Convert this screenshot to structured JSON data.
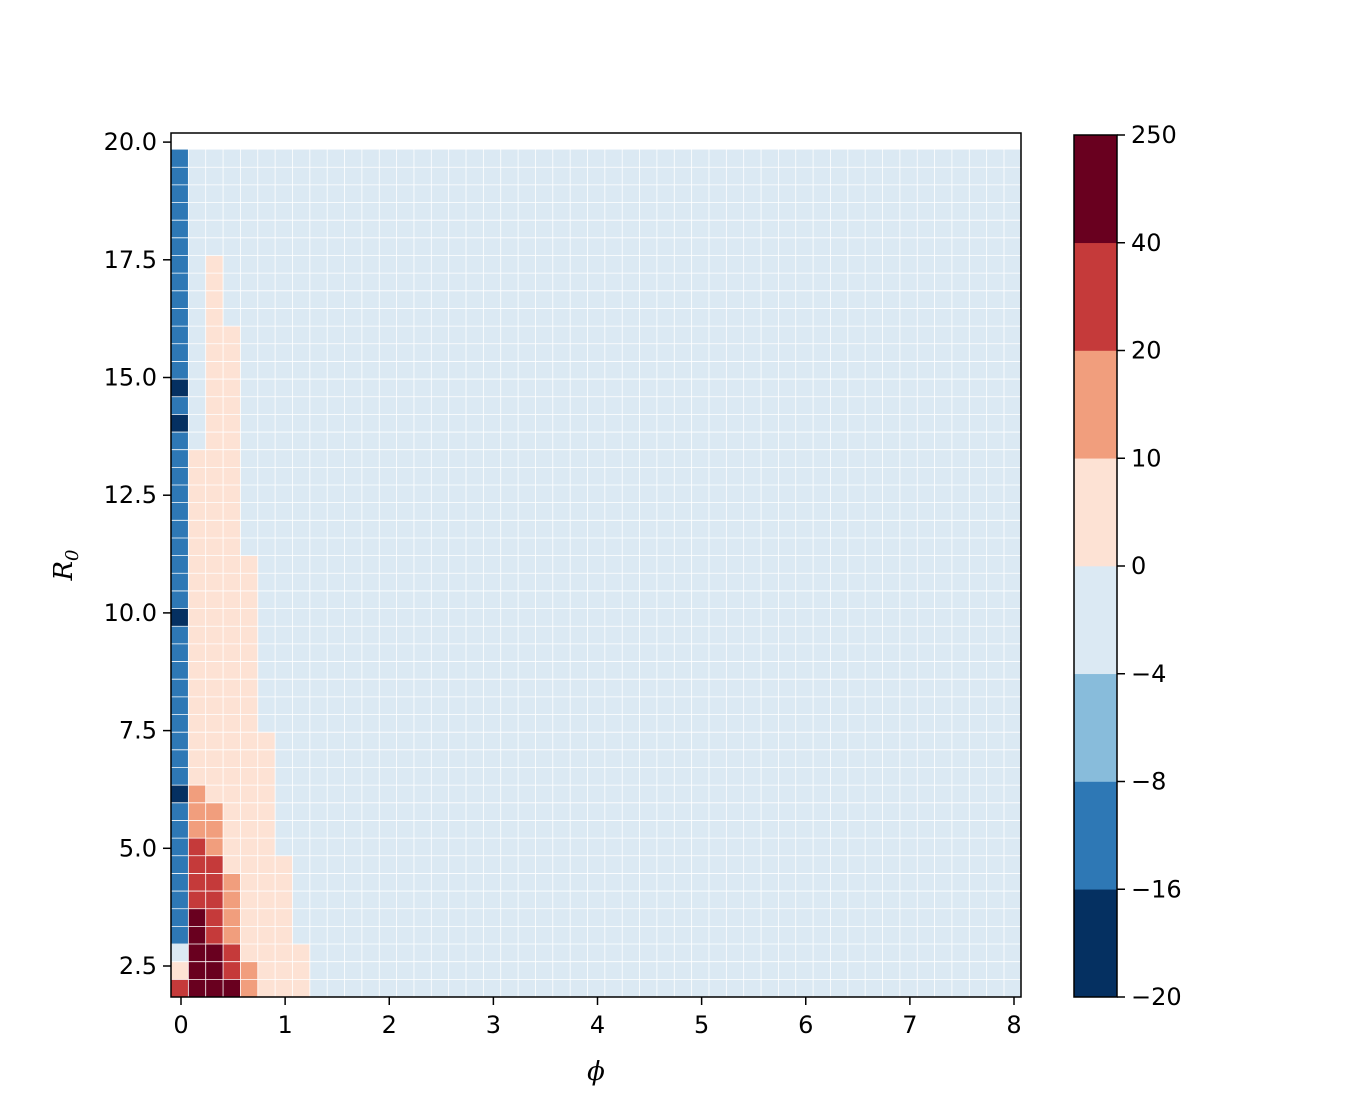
{
  "chart_data": {
    "type": "heatmap",
    "title": "",
    "xlabel": "ϕ",
    "ylabel_main": "R",
    "ylabel_sub": "0",
    "x_range": [
      0,
      8
    ],
    "y_range": [
      2,
      20
    ],
    "x_cell_step": 0.16666667,
    "y_cell_step": 0.375,
    "grid": true,
    "x_ticks": [
      0,
      1,
      2,
      3,
      4,
      5,
      6,
      7,
      8
    ],
    "x_tick_labels": [
      "0",
      "1",
      "2",
      "3",
      "4",
      "5",
      "6",
      "7",
      "8"
    ],
    "y_ticks": [
      2.5,
      5.0,
      7.5,
      10.0,
      12.5,
      15.0,
      17.5,
      20.0
    ],
    "y_tick_labels": [
      "2.5",
      "5.0",
      "7.5",
      "10.0",
      "12.5",
      "15.0",
      "17.5",
      "20.0"
    ],
    "colorbar": {
      "boundaries": [
        -20,
        -16,
        -8,
        -4,
        0,
        10,
        20,
        40,
        250
      ],
      "tick_labels": [
        "−20",
        "−16",
        "−8",
        "−4",
        "0",
        "10",
        "20",
        "40",
        "250"
      ],
      "colors": [
        "#053061",
        "#2e78b5",
        "#88bcdb",
        "#dbe9f3",
        "#fde2d4",
        "#f19e7d",
        "#c53a3a",
        "#69001f"
      ]
    },
    "background_value": -2,
    "cells": [
      {
        "col": 0,
        "rows": [
          0,
          0
        ],
        "value": 30
      },
      {
        "col": 0,
        "rows": [
          1,
          1
        ],
        "value": 5
      },
      {
        "col": 0,
        "rows": [
          2,
          2
        ],
        "value": -2
      },
      {
        "col": 0,
        "rows": [
          3,
          47
        ],
        "value": -12
      },
      {
        "col": 0,
        "rows": [
          11,
          11
        ],
        "value": -18
      },
      {
        "col": 0,
        "rows": [
          21,
          21
        ],
        "value": -18
      },
      {
        "col": 0,
        "rows": [
          32,
          32
        ],
        "value": -18
      },
      {
        "col": 0,
        "rows": [
          34,
          34
        ],
        "value": -18
      },
      {
        "col": 1,
        "rows": [
          0,
          2
        ],
        "value": 100
      },
      {
        "col": 1,
        "rows": [
          3,
          4
        ],
        "value": 100
      },
      {
        "col": 1,
        "rows": [
          5,
          8
        ],
        "value": 30
      },
      {
        "col": 1,
        "rows": [
          9,
          11
        ],
        "value": 15
      },
      {
        "col": 1,
        "rows": [
          12,
          30
        ],
        "value": 5
      },
      {
        "col": 2,
        "rows": [
          0,
          2
        ],
        "value": 100
      },
      {
        "col": 2,
        "rows": [
          3,
          4
        ],
        "value": 30
      },
      {
        "col": 2,
        "rows": [
          5,
          7
        ],
        "value": 30
      },
      {
        "col": 2,
        "rows": [
          8,
          10
        ],
        "value": 15
      },
      {
        "col": 2,
        "rows": [
          11,
          41
        ],
        "value": 5
      },
      {
        "col": 3,
        "rows": [
          0,
          0
        ],
        "value": 100
      },
      {
        "col": 3,
        "rows": [
          1,
          2
        ],
        "value": 30
      },
      {
        "col": 3,
        "rows": [
          3,
          6
        ],
        "value": 15
      },
      {
        "col": 3,
        "rows": [
          7,
          37
        ],
        "value": 5
      },
      {
        "col": 4,
        "rows": [
          0,
          0
        ],
        "value": 15
      },
      {
        "col": 4,
        "rows": [
          1,
          1
        ],
        "value": 15
      },
      {
        "col": 4,
        "rows": [
          2,
          24
        ],
        "value": 5
      },
      {
        "col": 5,
        "rows": [
          0,
          14
        ],
        "value": 5
      },
      {
        "col": 6,
        "rows": [
          0,
          7
        ],
        "value": 5
      },
      {
        "col": 7,
        "rows": [
          0,
          2
        ],
        "value": 5
      }
    ]
  }
}
